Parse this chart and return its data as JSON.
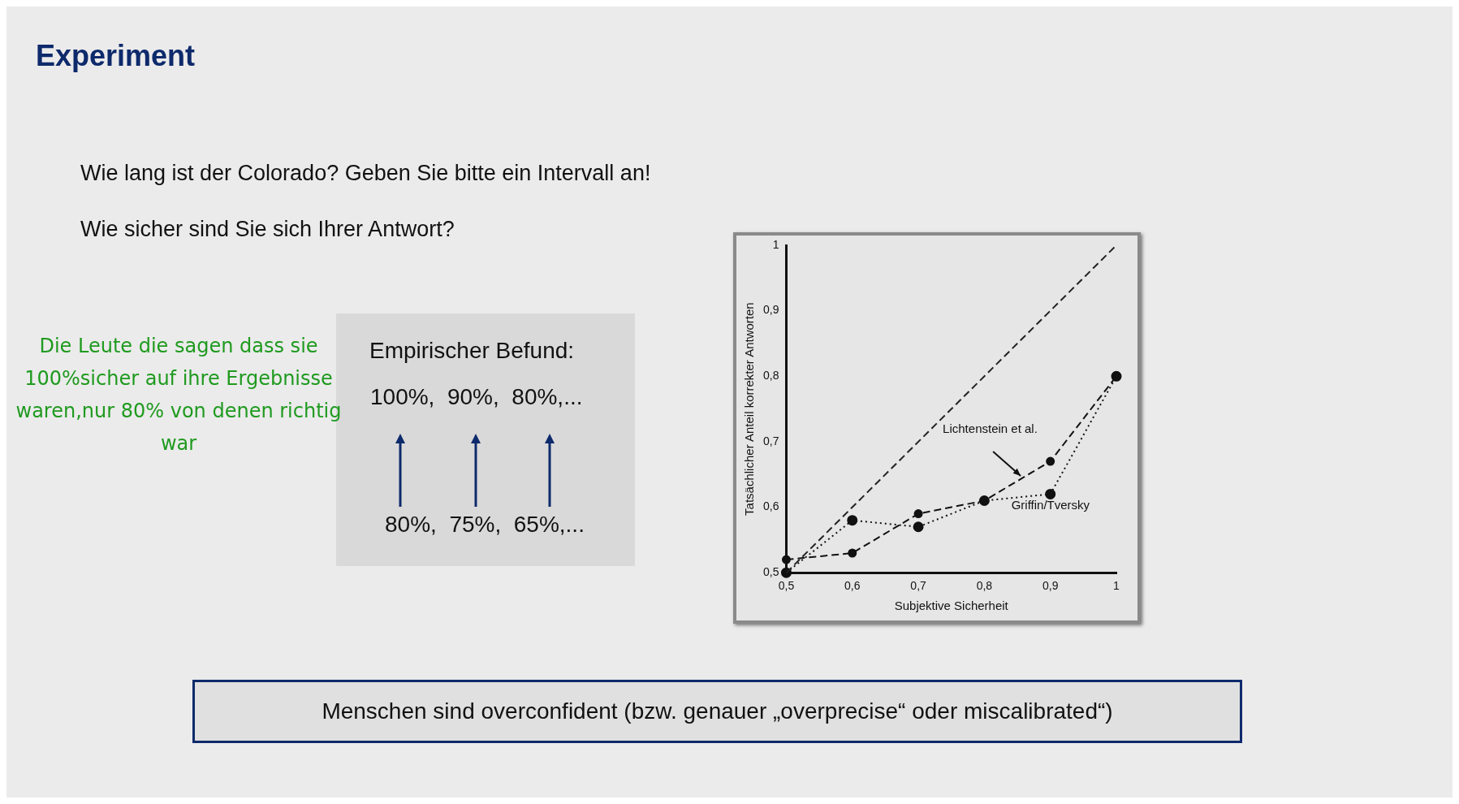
{
  "chart_data": {
    "type": "line",
    "title": "Experiment",
    "xlabel": "Subjektive Sicherheit",
    "ylabel": "Tatsächlicher Anteil korrekter Antworten",
    "xlim": [
      0.5,
      1
    ],
    "ylim": [
      0.5,
      1
    ],
    "xticks": [
      {
        "value": 0.5,
        "label": "0,5"
      },
      {
        "value": 0.6,
        "label": "0,6"
      },
      {
        "value": 0.7,
        "label": "0,7"
      },
      {
        "value": 0.8,
        "label": "0,8"
      },
      {
        "value": 0.9,
        "label": "0,9"
      },
      1
    ],
    "yticks": [
      {
        "value": 0.5,
        "label": "0,5"
      },
      {
        "value": 0.6,
        "label": "0,6"
      },
      {
        "value": 0.7,
        "label": "0,7"
      },
      {
        "value": 0.8,
        "label": "0,8"
      },
      {
        "value": 0.9,
        "label": "0,9"
      },
      1
    ],
    "grid": false,
    "legend": false,
    "series": [
      {
        "x": [
          0.5,
          1
        ],
        "values": [
          0.5,
          1
        ],
        "color": "#222222",
        "line_style": "dashed",
        "marker": "none"
      },
      {
        "name": "Lichtenstein et al.",
        "x": [
          0.5,
          0.6,
          0.7,
          0.8,
          0.9,
          1
        ],
        "values": [
          0.52,
          0.53,
          0.59,
          0.61,
          0.67,
          0.8
        ],
        "color": "#111111",
        "line_style": "dashed",
        "marker": "circle"
      },
      {
        "name": "Griffin/Tversky",
        "x": [
          0.5,
          0.6,
          0.7,
          0.8,
          0.9,
          1
        ],
        "values": [
          0.5,
          0.58,
          0.57,
          0.61,
          0.62,
          0.8
        ],
        "color": "#111111",
        "line_style": "dotted",
        "marker": "circle"
      }
    ],
    "annotations": [
      "Wie lang ist der Colorado? Geben Sie bitte ein Intervall an!",
      "Wie sicher sind Sie sich Ihrer Antwort?",
      "Empirischer Befund:",
      "100%,  90%,  80%,...",
      "80%,  75%,  65%,...",
      "Die Leute die sagen dass sie 100%sicher auf ihre Ergebnisse waren,nur 80% von denen richtig war",
      "Menschen sind overconfident (bzw. genauer „overprecise“ oder miscalibrated“)"
    ]
  }
}
